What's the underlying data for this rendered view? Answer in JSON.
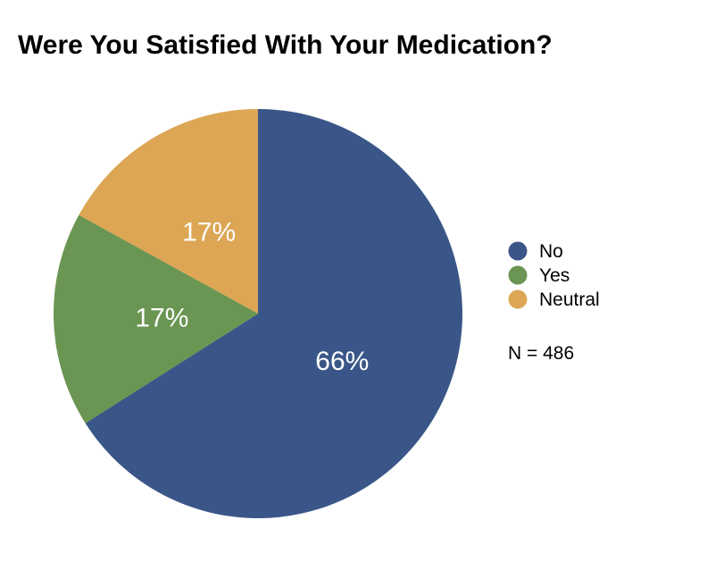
{
  "chart_data": {
    "type": "pie",
    "title": "Were You Satisfied With Your Medication?",
    "slices": [
      {
        "name": "No",
        "value": 66,
        "label": "66%",
        "color": "#3a5688"
      },
      {
        "name": "Yes",
        "value": 17,
        "label": "17%",
        "color": "#6a9552"
      },
      {
        "name": "Neutral",
        "value": 17,
        "label": "17%",
        "color": "#dca654"
      }
    ],
    "start": "12 o'clock",
    "direction": "clockwise",
    "legend_position": "right",
    "note": "N = 486"
  }
}
